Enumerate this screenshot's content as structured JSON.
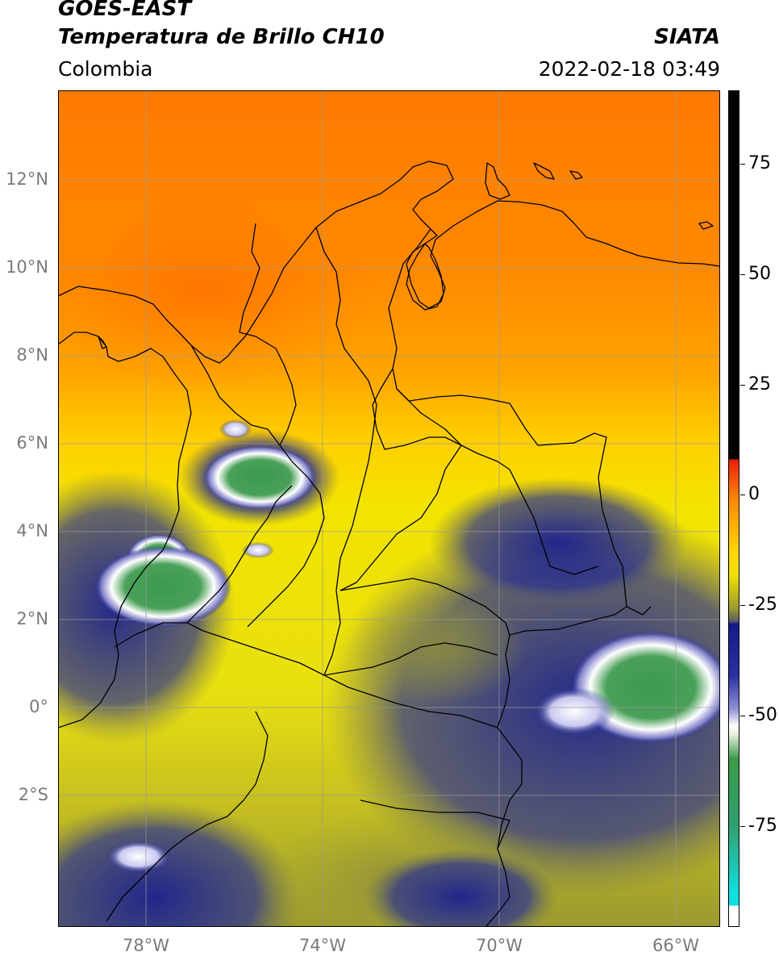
{
  "header": {
    "title_line1": "GOES-EAST",
    "title_line2": "Temperatura de Brillo CH10",
    "brand": "SIATA",
    "region": "Colombia",
    "timestamp": "2022-02-18 03:49"
  },
  "map": {
    "lat_labels": [
      "12°N",
      "10°N",
      "8°N",
      "6°N",
      "4°N",
      "2°N",
      "0°",
      "2°S"
    ],
    "lon_labels": [
      "78°W",
      "74°W",
      "70°W",
      "66°W"
    ],
    "extent": {
      "lon_min": -80,
      "lon_max": -65,
      "lat_min": -5.3,
      "lat_max": 14
    }
  },
  "colorbar": {
    "tick_labels": [
      "75",
      "50",
      "25",
      "0",
      "-25",
      "-50",
      "-75"
    ],
    "range": [
      -100,
      90
    ],
    "colors": {
      "black": "#000000",
      "red": "#e8200a",
      "orange": "#ff8a00",
      "yellow": "#f0e000",
      "olive": "#9a9a30",
      "navy": "#141a8c",
      "white": "#ffffff",
      "green": "#3a9a48",
      "cyan": "#10e0e0"
    }
  }
}
